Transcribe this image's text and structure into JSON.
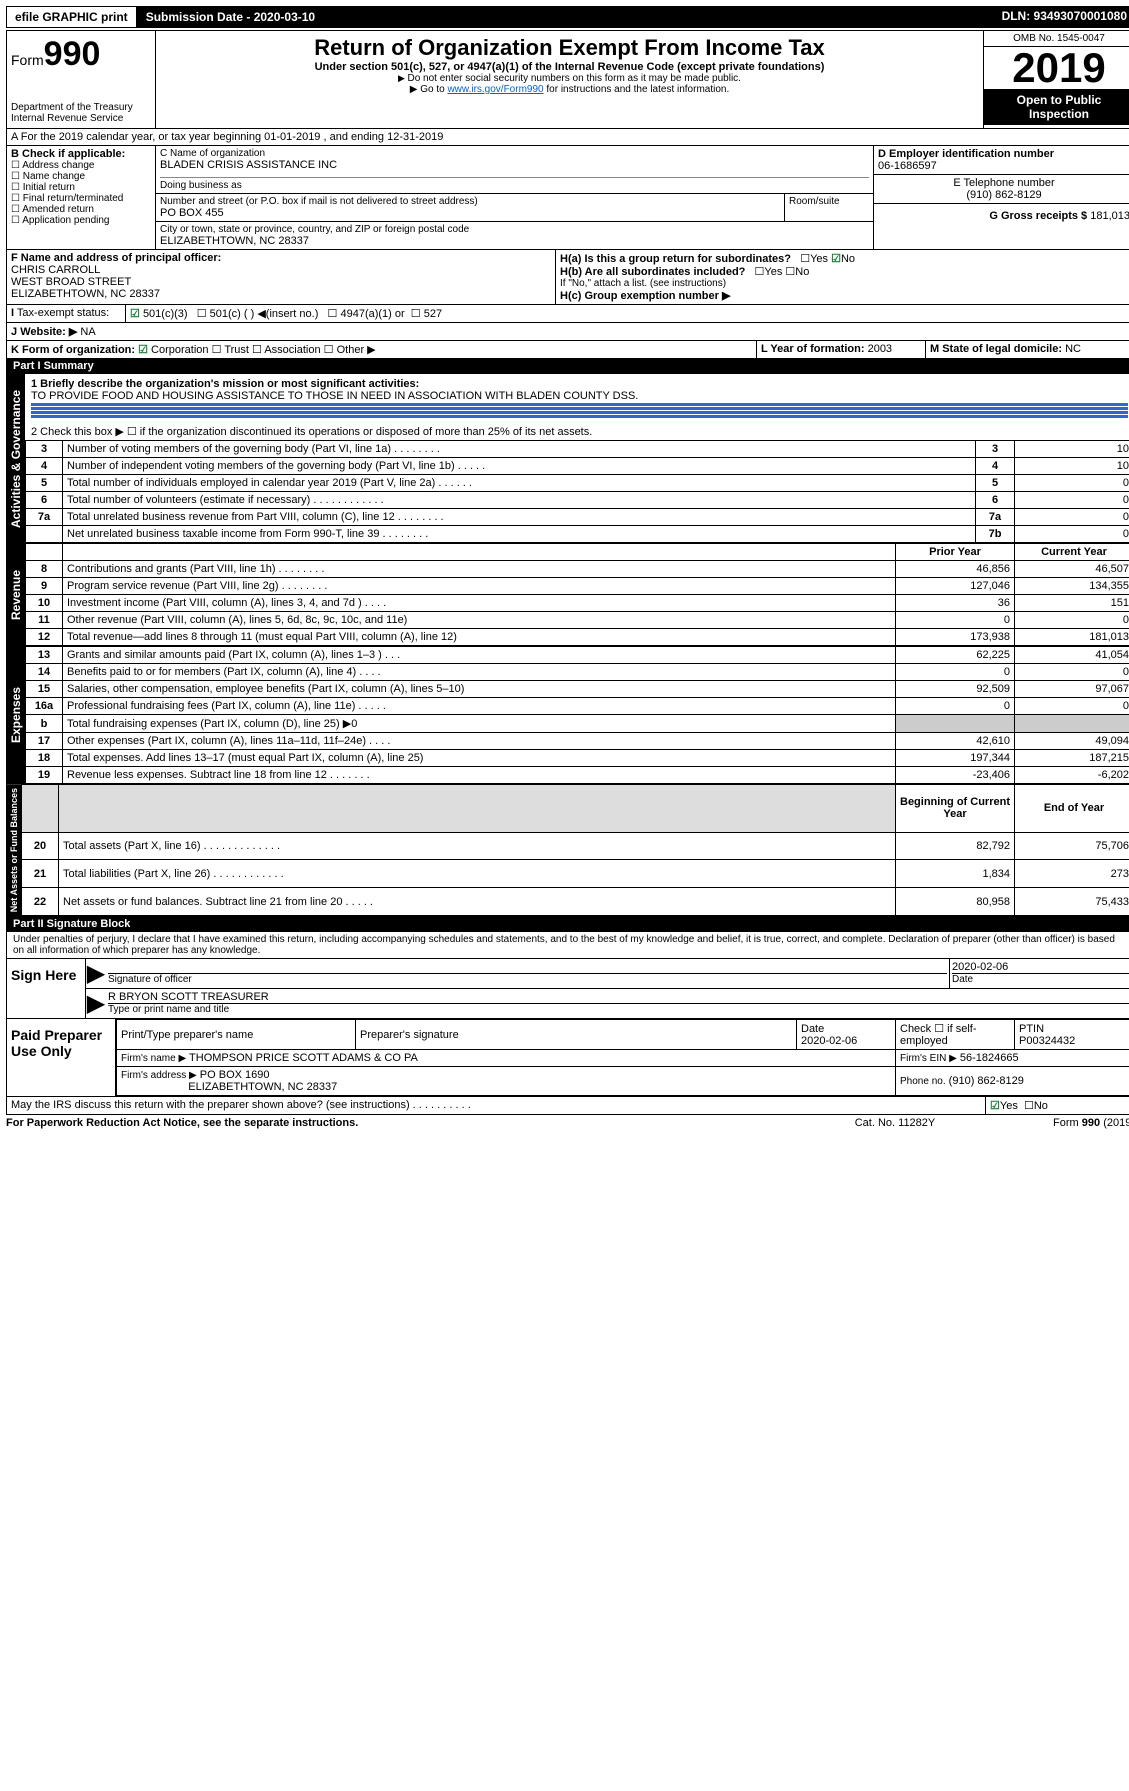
{
  "topbar": {
    "efile": "efile GRAPHIC print",
    "submission": "Submission Date - 2020-03-10",
    "dln": "DLN: 93493070001080"
  },
  "header": {
    "form_prefix": "Form",
    "form_no": "990",
    "dept1": "Department of the Treasury",
    "dept2": "Internal Revenue Service",
    "title": "Return of Organization Exempt From Income Tax",
    "sub1": "Under section 501(c), 527, or 4947(a)(1) of the Internal Revenue Code (except private foundations)",
    "sub2": "Do not enter social security numbers on this form as it may be made public.",
    "sub3_pre": "Go to ",
    "sub3_link": "www.irs.gov/Form990",
    "sub3_post": " for instructions and the latest information.",
    "omb": "OMB No. 1545-0047",
    "year": "2019",
    "open": "Open to Public Inspection"
  },
  "sectionA": {
    "line": "A For the 2019 calendar year, or tax year beginning 01-01-2019   , and ending 12-31-2019",
    "b_label": "B Check if applicable:",
    "b_items": [
      "Address change",
      "Name change",
      "Initial return",
      "Final return/terminated",
      "Amended return",
      "Application pending"
    ],
    "c_lbl": "C Name of organization",
    "c_name": "BLADEN CRISIS ASSISTANCE INC",
    "dba_lbl": "Doing business as",
    "addr_lbl": "Number and street (or P.O. box if mail is not delivered to street address)",
    "room_lbl": "Room/suite",
    "addr": "PO BOX 455",
    "city_lbl": "City or town, state or province, country, and ZIP or foreign postal code",
    "city": "ELIZABETHTOWN, NC  28337",
    "d_lbl": "D Employer identification number",
    "d_val": "06-1686597",
    "e_lbl": "E Telephone number",
    "e_val": "(910) 862-8129",
    "g_lbl": "G Gross receipts $",
    "g_val": "181,013",
    "f_lbl": "F Name and address of principal officer:",
    "f_name": "CHRIS CARROLL",
    "f_street": "WEST BROAD STREET",
    "f_city": "ELIZABETHTOWN, NC  28337",
    "ha_lbl": "H(a)  Is this a group return for subordinates?",
    "hb_lbl": "H(b)  Are all subordinates included?",
    "hb_note": "If \"No,\" attach a list. (see instructions)",
    "hc_lbl": "H(c)  Group exemption number ▶",
    "yes": "Yes",
    "no": "No",
    "i_lbl": "Tax-exempt status:",
    "i_501c3": "501(c)(3)",
    "i_501c": "501(c) (  ) ◀(insert no.)",
    "i_4947": "4947(a)(1) or",
    "i_527": "527",
    "j_lbl": "Website: ▶",
    "j_val": "NA",
    "k_lbl": "K Form of organization:",
    "k_corp": "Corporation",
    "k_trust": "Trust",
    "k_assoc": "Association",
    "k_other": "Other ▶",
    "l_lbl": "L Year of formation:",
    "l_val": "2003",
    "m_lbl": "M State of legal domicile:",
    "m_val": "NC"
  },
  "part1": {
    "hdr": "Part I    Summary",
    "l1_lbl": "1  Briefly describe the organization's mission or most significant activities:",
    "l1_val": "TO PROVIDE FOOD AND HOUSING ASSISTANCE TO THOSE IN NEED IN ASSOCIATION WITH BLADEN COUNTY DSS.",
    "l2": "2    Check this box ▶ ☐  if the organization discontinued its operations or disposed of more than 25% of its net assets.",
    "rows_ag": [
      {
        "n": "3",
        "t": "Number of voting members of the governing body (Part VI, line 1a)   .   .   .   .   .   .   .   .",
        "b": "3",
        "v": "10"
      },
      {
        "n": "4",
        "t": "Number of independent voting members of the governing body (Part VI, line 1b)   .   .   .   .   .",
        "b": "4",
        "v": "10"
      },
      {
        "n": "5",
        "t": "Total number of individuals employed in calendar year 2019 (Part V, line 2a)   .   .   .   .   .   .",
        "b": "5",
        "v": "0"
      },
      {
        "n": "6",
        "t": "Total number of volunteers (estimate if necessary)   .   .   .   .   .   .   .   .   .   .   .   .",
        "b": "6",
        "v": "0"
      },
      {
        "n": "7a",
        "t": "Total unrelated business revenue from Part VIII, column (C), line 12   .   .   .   .   .   .   .   .",
        "b": "7a",
        "v": "0"
      },
      {
        "n": "",
        "t": "Net unrelated business taxable income from Form 990-T, line 39    .   .   .   .   .   .   .   .",
        "b": "7b",
        "v": "0"
      }
    ],
    "col_prior": "Prior Year",
    "col_curr": "Current Year",
    "rev_rows": [
      {
        "n": "8",
        "t": "Contributions and grants (Part VIII, line 1h)   .   .   .   .   .   .   .   .",
        "p": "46,856",
        "c": "46,507"
      },
      {
        "n": "9",
        "t": "Program service revenue (Part VIII, line 2g)   .   .   .   .   .   .   .   .",
        "p": "127,046",
        "c": "134,355"
      },
      {
        "n": "10",
        "t": "Investment income (Part VIII, column (A), lines 3, 4, and 7d )   .   .   .   .",
        "p": "36",
        "c": "151"
      },
      {
        "n": "11",
        "t": "Other revenue (Part VIII, column (A), lines 5, 6d, 8c, 9c, 10c, and 11e)",
        "p": "0",
        "c": "0"
      },
      {
        "n": "12",
        "t": "Total revenue—add lines 8 through 11 (must equal Part VIII, column (A), line 12)",
        "p": "173,938",
        "c": "181,013"
      }
    ],
    "exp_rows": [
      {
        "n": "13",
        "t": "Grants and similar amounts paid (Part IX, column (A), lines 1–3 )   .   .   .",
        "p": "62,225",
        "c": "41,054"
      },
      {
        "n": "14",
        "t": "Benefits paid to or for members (Part IX, column (A), line 4)   .   .   .   .",
        "p": "0",
        "c": "0"
      },
      {
        "n": "15",
        "t": "Salaries, other compensation, employee benefits (Part IX, column (A), lines 5–10)",
        "p": "92,509",
        "c": "97,067"
      },
      {
        "n": "16a",
        "t": "Professional fundraising fees (Part IX, column (A), line 11e)   .   .   .   .   .",
        "p": "0",
        "c": "0"
      },
      {
        "n": "b",
        "t": "Total fundraising expenses (Part IX, column (D), line 25) ▶0",
        "p": "",
        "c": ""
      },
      {
        "n": "17",
        "t": "Other expenses (Part IX, column (A), lines 11a–11d, 11f–24e)   .   .   .   .",
        "p": "42,610",
        "c": "49,094"
      },
      {
        "n": "18",
        "t": "Total expenses. Add lines 13–17 (must equal Part IX, column (A), line 25)",
        "p": "197,344",
        "c": "187,215"
      },
      {
        "n": "19",
        "t": "Revenue less expenses. Subtract line 18 from line 12   .   .   .   .   .   .   .",
        "p": "-23,406",
        "c": "-6,202"
      }
    ],
    "col_beg": "Beginning of Current Year",
    "col_end": "End of Year",
    "na_rows": [
      {
        "n": "20",
        "t": "Total assets (Part X, line 16)   .   .   .   .   .   .   .   .   .   .   .   .   .",
        "p": "82,792",
        "c": "75,706"
      },
      {
        "n": "21",
        "t": "Total liabilities (Part X, line 26)   .   .   .   .   .   .   .   .   .   .   .   .",
        "p": "1,834",
        "c": "273"
      },
      {
        "n": "22",
        "t": "Net assets or fund balances. Subtract line 21 from line 20   .   .   .   .   .",
        "p": "80,958",
        "c": "75,433"
      }
    ],
    "side_ag": "Activities & Governance",
    "side_rev": "Revenue",
    "side_exp": "Expenses",
    "side_na": "Net Assets or Fund Balances"
  },
  "part2": {
    "hdr": "Part II    Signature Block",
    "decl": "Under penalties of perjury, I declare that I have examined this return, including accompanying schedules and statements, and to the best of my knowledge and belief, it is true, correct, and complete. Declaration of preparer (other than officer) is based on all information of which preparer has any knowledge.",
    "sign_here": "Sign Here",
    "sig_officer": "Signature of officer",
    "date_lbl": "Date",
    "date_val": "2020-02-06",
    "name_title": "R BRYON SCOTT TREASURER",
    "name_title_lbl": "Type or print name and title",
    "paid": "Paid Preparer Use Only",
    "pp_name_lbl": "Print/Type preparer's name",
    "pp_sig_lbl": "Preparer's signature",
    "pp_date_lbl": "Date",
    "pp_date_val": "2020-02-06",
    "pp_check_lbl": "Check ☐ if self-employed",
    "ptin_lbl": "PTIN",
    "ptin_val": "P00324432",
    "firm_name_lbl": "Firm's name    ▶",
    "firm_name": "THOMPSON PRICE SCOTT ADAMS & CO PA",
    "firm_ein_lbl": "Firm's EIN ▶",
    "firm_ein": "56-1824665",
    "firm_addr_lbl": "Firm's address ▶",
    "firm_addr1": "PO BOX 1690",
    "firm_addr2": "ELIZABETHTOWN, NC  28337",
    "firm_phone_lbl": "Phone no.",
    "firm_phone": "(910) 862-8129",
    "discuss": "May the IRS discuss this return with the preparer shown above? (see instructions)   .   .   .   .   .   .   .   .   .   .",
    "pra": "For Paperwork Reduction Act Notice, see the separate instructions.",
    "cat": "Cat. No. 11282Y",
    "formfoot": "Form 990 (2019)"
  }
}
